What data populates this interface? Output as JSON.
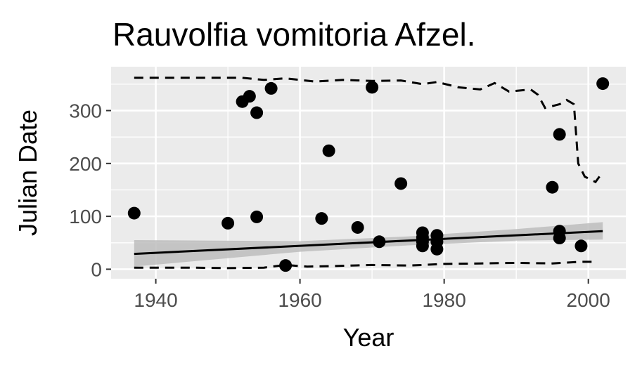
{
  "chart_data": {
    "type": "scatter",
    "title": "Rauvolfia vomitoria Afzel.",
    "xlabel": "Year",
    "ylabel": "Julian Date",
    "xlim": [
      1933.8,
      2005.2
    ],
    "ylim": [
      -18,
      383
    ],
    "xticks": [
      1940,
      1960,
      1980,
      2000
    ],
    "xtick_labels": [
      "1940",
      "1960",
      "1980",
      "2000"
    ],
    "yticks": [
      0,
      100,
      200,
      300
    ],
    "ytick_labels": [
      "0",
      "100",
      "200",
      "300"
    ],
    "grid": true,
    "legend": "none",
    "colors": {
      "panel_background": "#ebebeb",
      "grid": "#ffffff",
      "points": "#000000",
      "trend_line": "#000000",
      "confidence_band": "#bdbdbd",
      "quantile_lines": "#000000"
    },
    "points": [
      {
        "x": 1937,
        "y": 106
      },
      {
        "x": 1950,
        "y": 87
      },
      {
        "x": 1952,
        "y": 317
      },
      {
        "x": 1953,
        "y": 327
      },
      {
        "x": 1954,
        "y": 296
      },
      {
        "x": 1954,
        "y": 99
      },
      {
        "x": 1956,
        "y": 342
      },
      {
        "x": 1958,
        "y": 7
      },
      {
        "x": 1963,
        "y": 96
      },
      {
        "x": 1964,
        "y": 224
      },
      {
        "x": 1968,
        "y": 79
      },
      {
        "x": 1970,
        "y": 344
      },
      {
        "x": 1971,
        "y": 52
      },
      {
        "x": 1974,
        "y": 162
      },
      {
        "x": 1977,
        "y": 69
      },
      {
        "x": 1977,
        "y": 60
      },
      {
        "x": 1977,
        "y": 52
      },
      {
        "x": 1977,
        "y": 44
      },
      {
        "x": 1979,
        "y": 64
      },
      {
        "x": 1979,
        "y": 52
      },
      {
        "x": 1979,
        "y": 38
      },
      {
        "x": 1995,
        "y": 155
      },
      {
        "x": 1996,
        "y": 255
      },
      {
        "x": 1996,
        "y": 72
      },
      {
        "x": 1996,
        "y": 59
      },
      {
        "x": 1999,
        "y": 44
      },
      {
        "x": 2002,
        "y": 351
      }
    ],
    "trend_line": [
      {
        "x": 1937,
        "y": 29
      },
      {
        "x": 2002,
        "y": 72
      }
    ],
    "confidence_band": [
      {
        "x": 1937,
        "lower": 5,
        "upper": 55
      },
      {
        "x": 1960,
        "lower": 33,
        "upper": 53
      },
      {
        "x": 1975,
        "lower": 45,
        "upper": 62
      },
      {
        "x": 1990,
        "lower": 54,
        "upper": 76
      },
      {
        "x": 2002,
        "lower": 56,
        "upper": 89
      }
    ],
    "upper_quantile_line": [
      {
        "x": 1937,
        "y": 362
      },
      {
        "x": 1945,
        "y": 362
      },
      {
        "x": 1952,
        "y": 362
      },
      {
        "x": 1955,
        "y": 358
      },
      {
        "x": 1958,
        "y": 361
      },
      {
        "x": 1962,
        "y": 355
      },
      {
        "x": 1966,
        "y": 358
      },
      {
        "x": 1970,
        "y": 356
      },
      {
        "x": 1974,
        "y": 357
      },
      {
        "x": 1977,
        "y": 350
      },
      {
        "x": 1979,
        "y": 354
      },
      {
        "x": 1982,
        "y": 344
      },
      {
        "x": 1985,
        "y": 340
      },
      {
        "x": 1987,
        "y": 352
      },
      {
        "x": 1989,
        "y": 336
      },
      {
        "x": 1992,
        "y": 340
      },
      {
        "x": 1993,
        "y": 330
      },
      {
        "x": 1994,
        "y": 305
      },
      {
        "x": 1996,
        "y": 312
      },
      {
        "x": 1997,
        "y": 320
      },
      {
        "x": 1998,
        "y": 312
      },
      {
        "x": 1998.6,
        "y": 200
      },
      {
        "x": 1999.5,
        "y": 175
      },
      {
        "x": 2001,
        "y": 165
      },
      {
        "x": 2002,
        "y": 184
      }
    ],
    "lower_quantile_line": [
      {
        "x": 1937,
        "y": 3
      },
      {
        "x": 1945,
        "y": 3
      },
      {
        "x": 1950,
        "y": 2
      },
      {
        "x": 1955,
        "y": 3
      },
      {
        "x": 1958,
        "y": 8
      },
      {
        "x": 1961,
        "y": 5
      },
      {
        "x": 1965,
        "y": 6
      },
      {
        "x": 1970,
        "y": 8
      },
      {
        "x": 1975,
        "y": 7
      },
      {
        "x": 1977,
        "y": 8
      },
      {
        "x": 1980,
        "y": 10
      },
      {
        "x": 1985,
        "y": 11
      },
      {
        "x": 1990,
        "y": 12
      },
      {
        "x": 1995,
        "y": 11
      },
      {
        "x": 1999,
        "y": 14
      },
      {
        "x": 2001,
        "y": 14
      }
    ]
  }
}
